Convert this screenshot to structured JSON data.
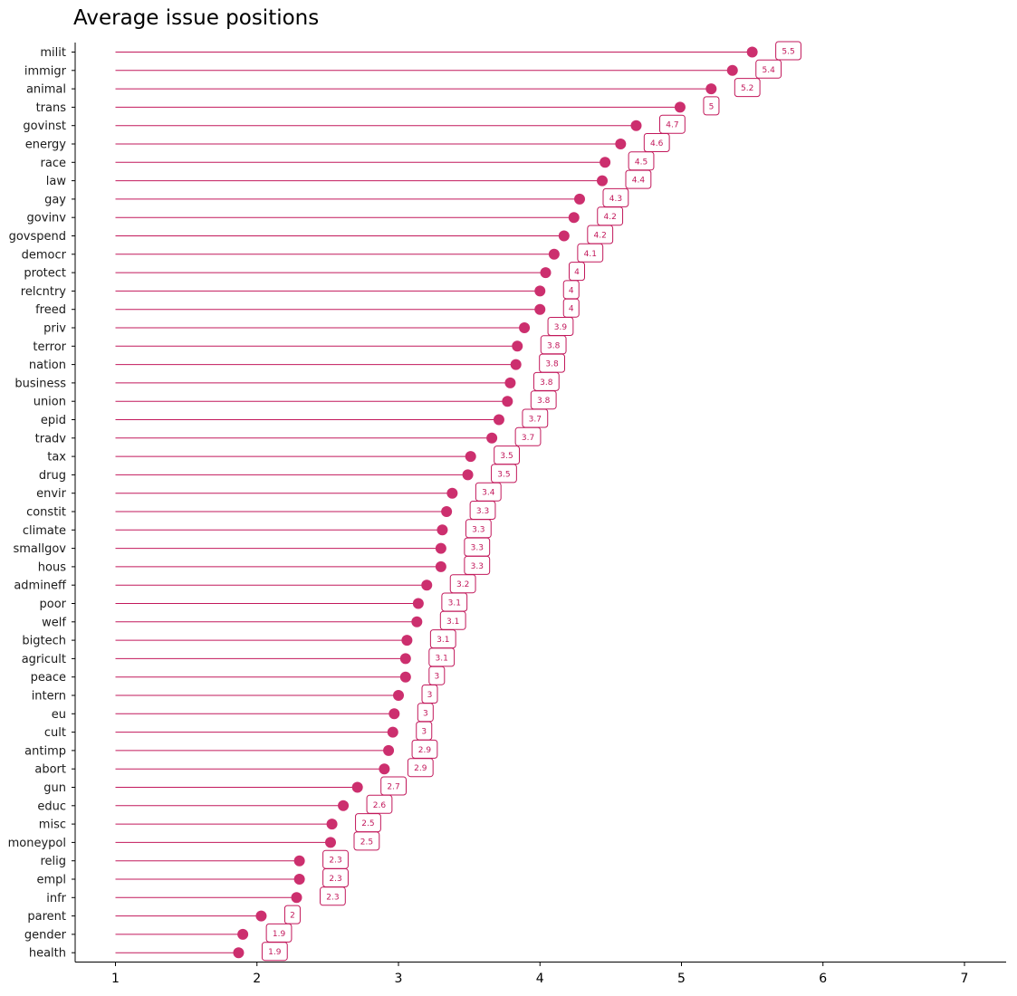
{
  "chart_data": {
    "type": "lollipop",
    "title": "Average issue positions",
    "xlabel": "",
    "ylabel": "",
    "xlim": [
      1,
      7
    ],
    "xticks": [
      "1",
      "2",
      "3",
      "4",
      "5",
      "6",
      "7"
    ],
    "grid": false,
    "color": "#c2185b",
    "point_color": "#cc2f6e",
    "categories": [
      "milit",
      "immigr",
      "animal",
      "trans",
      "govinst",
      "energy",
      "race",
      "law",
      "gay",
      "govinv",
      "govspend",
      "democr",
      "protect",
      "relcntry",
      "freed",
      "priv",
      "terror",
      "nation",
      "business",
      "union",
      "epid",
      "tradv",
      "tax",
      "drug",
      "envir",
      "constit",
      "climate",
      "smallgov",
      "hous",
      "admineff",
      "poor",
      "welf",
      "bigtech",
      "agricult",
      "peace",
      "intern",
      "eu",
      "cult",
      "antimp",
      "abort",
      "gun",
      "educ",
      "misc",
      "moneypol",
      "relig",
      "empl",
      "infr",
      "parent",
      "gender",
      "health"
    ],
    "values": [
      5.5,
      5.36,
      5.21,
      4.99,
      4.68,
      4.57,
      4.46,
      4.44,
      4.28,
      4.24,
      4.17,
      4.1,
      4.04,
      4.0,
      4.0,
      3.89,
      3.84,
      3.83,
      3.79,
      3.77,
      3.71,
      3.66,
      3.51,
      3.49,
      3.38,
      3.34,
      3.31,
      3.3,
      3.3,
      3.2,
      3.14,
      3.13,
      3.06,
      3.05,
      3.05,
      3.0,
      2.97,
      2.96,
      2.93,
      2.9,
      2.71,
      2.61,
      2.53,
      2.52,
      2.3,
      2.3,
      2.28,
      2.03,
      1.9,
      1.87
    ],
    "labels": [
      "5.5",
      "5.4",
      "5.2",
      "5",
      "4.7",
      "4.6",
      "4.5",
      "4.4",
      "4.3",
      "4.2",
      "4.2",
      "4.1",
      "4",
      "4",
      "4",
      "3.9",
      "3.8",
      "3.8",
      "3.8",
      "3.8",
      "3.7",
      "3.7",
      "3.5",
      "3.5",
      "3.4",
      "3.3",
      "3.3",
      "3.3",
      "3.3",
      "3.2",
      "3.1",
      "3.1",
      "3.1",
      "3.1",
      "3",
      "3",
      "3",
      "3",
      "2.9",
      "2.9",
      "2.7",
      "2.6",
      "2.5",
      "2.5",
      "2.3",
      "2.3",
      "2.3",
      "2",
      "1.9",
      "1.9"
    ]
  }
}
